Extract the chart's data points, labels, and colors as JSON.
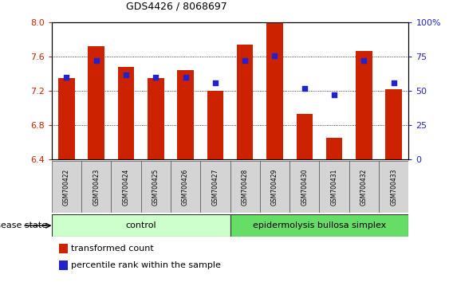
{
  "title": "GDS4426 / 8068697",
  "samples": [
    "GSM700422",
    "GSM700423",
    "GSM700424",
    "GSM700425",
    "GSM700426",
    "GSM700427",
    "GSM700428",
    "GSM700429",
    "GSM700430",
    "GSM700431",
    "GSM700432",
    "GSM700433"
  ],
  "red_values": [
    7.35,
    7.72,
    7.48,
    7.35,
    7.44,
    7.2,
    7.74,
    8.0,
    6.93,
    6.65,
    7.67,
    7.22
  ],
  "blue_values": [
    60,
    72,
    62,
    60,
    60,
    56,
    72,
    76,
    52,
    47,
    72,
    56
  ],
  "ylim_left": [
    6.4,
    8.0
  ],
  "ylim_right": [
    0,
    100
  ],
  "yticks_left": [
    6.4,
    6.8,
    7.2,
    7.6,
    8.0
  ],
  "yticks_right": [
    0,
    25,
    50,
    75,
    100
  ],
  "bar_color": "#cc2200",
  "dot_color": "#2222cc",
  "bar_base": 6.4,
  "groups": [
    {
      "label": "control",
      "start": 0,
      "end": 6,
      "color": "#ccffcc"
    },
    {
      "label": "epidermolysis bullosa simplex",
      "start": 6,
      "end": 12,
      "color": "#66dd66"
    }
  ],
  "disease_state_label": "disease state",
  "legend_red_label": "transformed count",
  "legend_blue_label": "percentile rank within the sample",
  "bar_width": 0.55,
  "title_fontsize": 9,
  "axis_fontsize": 8,
  "label_fontsize": 7,
  "sample_fontsize": 5.5,
  "group_fontsize": 8,
  "legend_fontsize": 8
}
